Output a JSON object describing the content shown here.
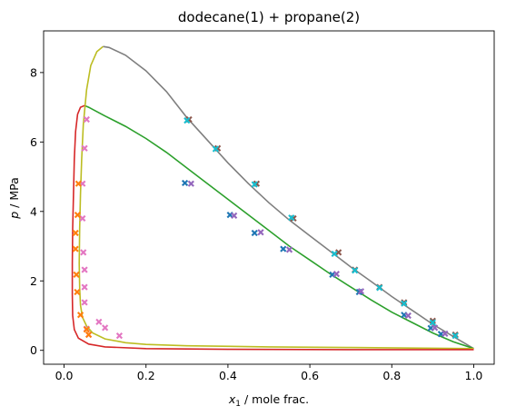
{
  "chart_data": {
    "type": "line",
    "title": "dodecane(1) + propane(2)",
    "xlabel": {
      "var": "x",
      "sub": "1",
      "rest": " / mole frac."
    },
    "ylabel": {
      "var": "p",
      "rest": " / MPa"
    },
    "xlim": [
      -0.05,
      1.05
    ],
    "ylim": [
      -0.4,
      9.2
    ],
    "xticks": [
      0.0,
      0.2,
      0.4,
      0.6,
      0.8,
      1.0
    ],
    "xtick_labels": [
      "0.0",
      "0.2",
      "0.4",
      "0.6",
      "0.8",
      "1.0"
    ],
    "yticks": [
      0,
      2,
      4,
      6,
      8
    ],
    "ytick_labels": [
      "0",
      "2",
      "4",
      "6",
      "8"
    ],
    "grid": false,
    "curves": [
      {
        "color": "#7f7f7f",
        "points": [
          [
            0.095,
            8.75
          ],
          [
            0.11,
            8.72
          ],
          [
            0.15,
            8.5
          ],
          [
            0.2,
            8.05
          ],
          [
            0.25,
            7.45
          ],
          [
            0.3,
            6.7
          ],
          [
            0.35,
            6.05
          ],
          [
            0.4,
            5.4
          ],
          [
            0.45,
            4.8
          ],
          [
            0.5,
            4.25
          ],
          [
            0.55,
            3.75
          ],
          [
            0.6,
            3.3
          ],
          [
            0.65,
            2.85
          ],
          [
            0.7,
            2.4
          ],
          [
            0.75,
            1.98
          ],
          [
            0.8,
            1.55
          ],
          [
            0.85,
            1.15
          ],
          [
            0.9,
            0.75
          ],
          [
            0.95,
            0.4
          ],
          [
            1.0,
            0.05
          ]
        ]
      },
      {
        "color": "#2ca02c",
        "points": [
          [
            0.05,
            7.05
          ],
          [
            0.06,
            7.0
          ],
          [
            0.1,
            6.75
          ],
          [
            0.15,
            6.45
          ],
          [
            0.2,
            6.1
          ],
          [
            0.25,
            5.7
          ],
          [
            0.3,
            5.25
          ],
          [
            0.35,
            4.8
          ],
          [
            0.4,
            4.35
          ],
          [
            0.45,
            3.9
          ],
          [
            0.5,
            3.45
          ],
          [
            0.55,
            3.0
          ],
          [
            0.6,
            2.6
          ],
          [
            0.65,
            2.2
          ],
          [
            0.7,
            1.82
          ],
          [
            0.75,
            1.45
          ],
          [
            0.8,
            1.1
          ],
          [
            0.85,
            0.8
          ],
          [
            0.9,
            0.5
          ],
          [
            0.95,
            0.25
          ],
          [
            1.0,
            0.05
          ]
        ]
      },
      {
        "color": "#bcbd22",
        "points": [
          [
            0.095,
            8.75
          ],
          [
            0.08,
            8.6
          ],
          [
            0.065,
            8.2
          ],
          [
            0.055,
            7.5
          ],
          [
            0.047,
            6.5
          ],
          [
            0.043,
            5.5
          ],
          [
            0.04,
            4.5
          ],
          [
            0.038,
            3.5
          ],
          [
            0.037,
            2.5
          ],
          [
            0.038,
            1.8
          ],
          [
            0.04,
            1.3
          ],
          [
            0.045,
            0.95
          ],
          [
            0.055,
            0.7
          ],
          [
            0.07,
            0.5
          ],
          [
            0.1,
            0.33
          ],
          [
            0.15,
            0.22
          ],
          [
            0.2,
            0.17
          ],
          [
            0.3,
            0.13
          ],
          [
            0.5,
            0.1
          ],
          [
            0.7,
            0.08
          ],
          [
            1.0,
            0.05
          ]
        ]
      },
      {
        "color": "#d62728",
        "points": [
          [
            0.05,
            7.05
          ],
          [
            0.04,
            7.0
          ],
          [
            0.033,
            6.8
          ],
          [
            0.028,
            6.3
          ],
          [
            0.025,
            5.5
          ],
          [
            0.023,
            4.5
          ],
          [
            0.021,
            3.5
          ],
          [
            0.02,
            2.5
          ],
          [
            0.02,
            1.6
          ],
          [
            0.021,
            1.0
          ],
          [
            0.025,
            0.6
          ],
          [
            0.035,
            0.35
          ],
          [
            0.06,
            0.18
          ],
          [
            0.1,
            0.1
          ],
          [
            0.2,
            0.05
          ],
          [
            0.4,
            0.03
          ],
          [
            0.7,
            0.02
          ],
          [
            1.0,
            0.02
          ]
        ]
      }
    ],
    "markers": [
      {
        "color": "#1f77b4",
        "points": [
          [
            0.295,
            4.82
          ],
          [
            0.405,
            3.9
          ],
          [
            0.465,
            3.38
          ],
          [
            0.535,
            2.92
          ],
          [
            0.655,
            2.18
          ],
          [
            0.72,
            1.68
          ],
          [
            0.83,
            1.02
          ],
          [
            0.895,
            0.64
          ],
          [
            0.92,
            0.47
          ]
        ]
      },
      {
        "color": "#8c564b",
        "points": [
          [
            0.305,
            6.65
          ],
          [
            0.375,
            5.82
          ],
          [
            0.47,
            4.8
          ],
          [
            0.56,
            3.8
          ],
          [
            0.67,
            2.82
          ],
          [
            0.71,
            2.32
          ],
          [
            0.77,
            1.82
          ],
          [
            0.83,
            1.38
          ],
          [
            0.9,
            0.85
          ],
          [
            0.955,
            0.45
          ]
        ]
      },
      {
        "color": "#17becf",
        "points": [
          [
            0.3,
            6.62
          ],
          [
            0.37,
            5.8
          ],
          [
            0.465,
            4.78
          ],
          [
            0.555,
            3.82
          ],
          [
            0.66,
            2.78
          ],
          [
            0.71,
            2.3
          ],
          [
            0.77,
            1.8
          ],
          [
            0.83,
            1.35
          ],
          [
            0.9,
            0.8
          ],
          [
            0.955,
            0.42
          ]
        ]
      },
      {
        "color": "#9467bd",
        "points": [
          [
            0.31,
            4.8
          ],
          [
            0.415,
            3.88
          ],
          [
            0.48,
            3.4
          ],
          [
            0.55,
            2.9
          ],
          [
            0.665,
            2.2
          ],
          [
            0.725,
            1.7
          ],
          [
            0.84,
            1.0
          ],
          [
            0.905,
            0.65
          ],
          [
            0.93,
            0.48
          ]
        ]
      },
      {
        "color": "#e377c2",
        "points": [
          [
            0.055,
            6.65
          ],
          [
            0.05,
            5.82
          ],
          [
            0.045,
            4.8
          ],
          [
            0.045,
            3.8
          ],
          [
            0.047,
            2.82
          ],
          [
            0.05,
            2.32
          ],
          [
            0.05,
            1.82
          ],
          [
            0.05,
            1.38
          ],
          [
            0.055,
            0.62
          ],
          [
            0.06,
            0.45
          ],
          [
            0.085,
            0.82
          ],
          [
            0.1,
            0.65
          ],
          [
            0.135,
            0.42
          ]
        ]
      },
      {
        "color": "#ff7f0e",
        "points": [
          [
            0.035,
            4.8
          ],
          [
            0.033,
            3.9
          ],
          [
            0.028,
            3.38
          ],
          [
            0.028,
            2.92
          ],
          [
            0.03,
            2.18
          ],
          [
            0.032,
            1.68
          ],
          [
            0.04,
            1.02
          ],
          [
            0.055,
            0.6
          ],
          [
            0.06,
            0.45
          ]
        ]
      }
    ]
  }
}
